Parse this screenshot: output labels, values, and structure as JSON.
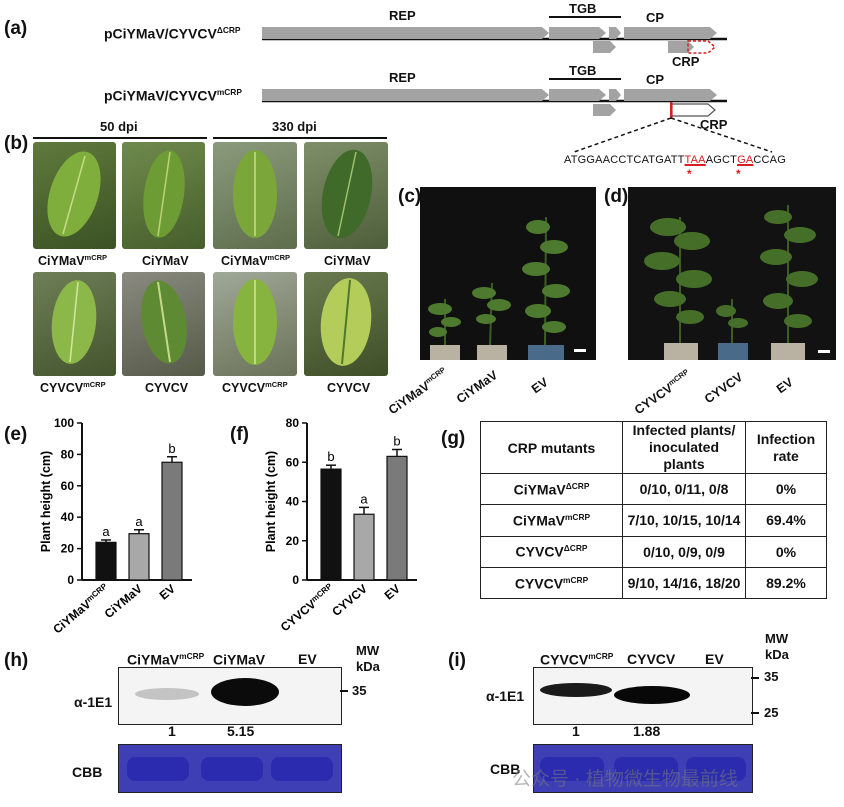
{
  "panels": {
    "a": "(a)",
    "b": "(b)",
    "c": "(c)",
    "d": "(d)",
    "e": "(e)",
    "f": "(f)",
    "g": "(g)",
    "h": "(h)",
    "i": "(i)"
  },
  "construct_a": {
    "name1_base": "pCiYMaV/CYVCV",
    "name1_sup": "ΔCRP",
    "name2_base": "pCiYMaV/CYVCV",
    "name2_sup": "mCRP",
    "genes": {
      "rep": "REP",
      "tgb": "TGB",
      "cp": "CP",
      "crp": "CRP"
    },
    "sequence": {
      "s1": "ATGGAACCTCATGATT",
      "s2": "TAA",
      "s3": "AGCT",
      "s4": "GA",
      "s5": "CCAG",
      "star": "*"
    }
  },
  "panel_b": {
    "time_50": "50 dpi",
    "time_330": "330 dpi",
    "row1": [
      {
        "base": "CiYMaV",
        "sup": "mCRP"
      },
      {
        "base": "CiYMaV",
        "sup": ""
      },
      {
        "base": "CiYMaV",
        "sup": "mCRP"
      },
      {
        "base": "CiYMaV",
        "sup": ""
      }
    ],
    "row2": [
      {
        "base": "CYVCV",
        "sup": "mCRP"
      },
      {
        "base": "CYVCV",
        "sup": ""
      },
      {
        "base": "CYVCV",
        "sup": "mCRP"
      },
      {
        "base": "CYVCV",
        "sup": ""
      }
    ]
  },
  "panel_c_labels": [
    {
      "base": "CiYMaV",
      "sup": "mCRP"
    },
    {
      "base": "CiYMaV",
      "sup": ""
    },
    {
      "base": "EV",
      "sup": ""
    }
  ],
  "panel_d_labels": [
    {
      "base": "CYVCV",
      "sup": "mCRP"
    },
    {
      "base": "CYVCV",
      "sup": ""
    },
    {
      "base": "EV",
      "sup": ""
    }
  ],
  "chart_data": [
    {
      "type": "bar",
      "panel": "e",
      "categories": [
        "CiYMaV^mCRP",
        "CiYMaV",
        "EV"
      ],
      "category_labels": [
        {
          "base": "CiYMaV",
          "sup": "mCRP"
        },
        {
          "base": "CiYMaV",
          "sup": ""
        },
        {
          "base": "EV",
          "sup": ""
        }
      ],
      "values": [
        24,
        29.5,
        75
      ],
      "errors": [
        1.5,
        2.5,
        3.5
      ],
      "letters": [
        "a",
        "a",
        "b"
      ],
      "colors": [
        "#111111",
        "#a8a8a8",
        "#7a7a7a"
      ],
      "ylabel": "Plant height (cm)",
      "ylim": [
        0,
        100
      ],
      "yticks": [
        0,
        20,
        40,
        60,
        80,
        100
      ]
    },
    {
      "type": "bar",
      "panel": "f",
      "categories": [
        "CYVCV^mCRP",
        "CYVCV",
        "EV"
      ],
      "category_labels": [
        {
          "base": "CYVCV",
          "sup": "mCRP"
        },
        {
          "base": "CYVCV",
          "sup": ""
        },
        {
          "base": "EV",
          "sup": ""
        }
      ],
      "values": [
        56.5,
        33.5,
        63
      ],
      "errors": [
        2,
        3.5,
        3.5
      ],
      "letters": [
        "b",
        "a",
        "b"
      ],
      "colors": [
        "#111111",
        "#a8a8a8",
        "#7a7a7a"
      ],
      "ylabel": "Plant height (cm)",
      "ylim": [
        0,
        80
      ],
      "yticks": [
        0,
        20,
        40,
        60,
        80
      ]
    }
  ],
  "table_g": {
    "headers": [
      "CRP mutants",
      "Infected plants/\ninoculated plants",
      "Infection\nrate"
    ],
    "rows": [
      {
        "base": "CiYMaV",
        "sup": "ΔCRP",
        "counts": "0/10, 0/11, 0/8",
        "rate": "0%"
      },
      {
        "base": "CiYMaV",
        "sup": "mCRP",
        "counts": "7/10, 10/15, 10/14",
        "rate": "69.4%"
      },
      {
        "base": "CYVCV",
        "sup": "ΔCRP",
        "counts": "0/10, 0/9, 0/9",
        "rate": "0%"
      },
      {
        "base": "CYVCV",
        "sup": "mCRP",
        "counts": "9/10, 14/16, 18/20",
        "rate": "89.2%"
      }
    ]
  },
  "western_h": {
    "lanes": [
      {
        "base": "CiYMaV",
        "sup": "mCRP"
      },
      {
        "base": "CiYMaV",
        "sup": ""
      },
      {
        "base": "EV",
        "sup": ""
      }
    ],
    "antibody": "α-1E1",
    "mw_title1": "MW",
    "mw_title2": "kDa",
    "marker": "35",
    "ratios": [
      "1",
      "5.15"
    ],
    "stain": "CBB"
  },
  "western_i": {
    "lanes": [
      {
        "base": "CYVCV",
        "sup": "mCRP"
      },
      {
        "base": "CYVCV",
        "sup": ""
      },
      {
        "base": "EV",
        "sup": ""
      }
    ],
    "antibody": "α-1E1",
    "mw_title1": "MW",
    "mw_title2": "kDa",
    "marker_top": "35",
    "marker_bottom": "25",
    "ratios": [
      "1",
      "1.88"
    ],
    "stain": "CBB"
  },
  "watermark": "公众号 · 植物微生物最前线",
  "colors": {
    "gene_arrow": "#a3a3a3",
    "mutation_red": "#d42020",
    "cbb_blue": "#3e3eb5"
  }
}
